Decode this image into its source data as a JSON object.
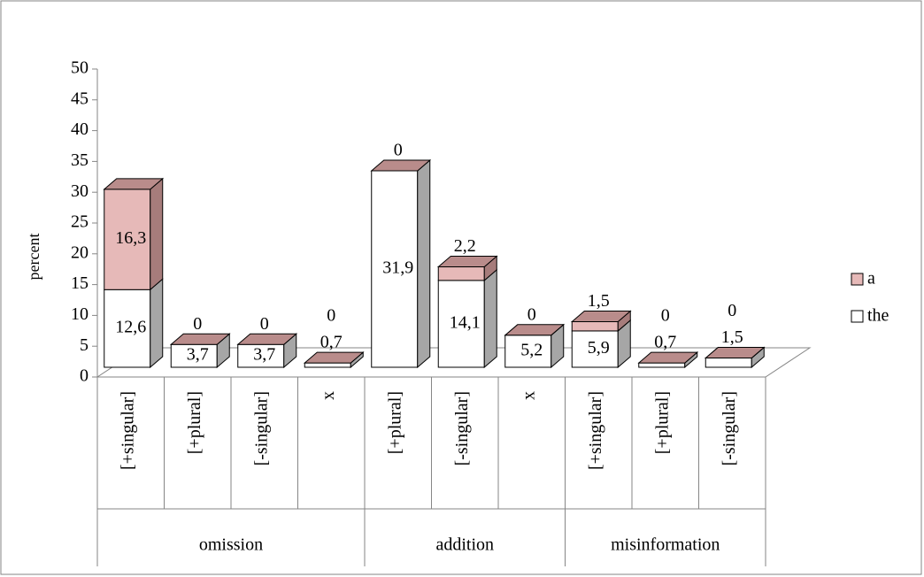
{
  "chart_data": {
    "type": "bar3d_stacked",
    "ylabel": "percent",
    "categories": [
      "[+singular]",
      "[+plural]",
      "[-singular]",
      "x",
      "[+plural]",
      "[-singular]",
      "x",
      "[+singular]",
      "[+plural]",
      "[-singular]"
    ],
    "groups": [
      {
        "label": "omission",
        "size": 4
      },
      {
        "label": "addition",
        "size": 3
      },
      {
        "label": "misinformation",
        "size": 3
      }
    ],
    "series": [
      {
        "name": "the",
        "color": "#ffffff",
        "side": "#a6a6a6",
        "top": "#c8c8c8",
        "values": [
          12.6,
          3.7,
          3.7,
          0.7,
          31.9,
          14.1,
          5.2,
          5.9,
          0.7,
          1.5
        ],
        "value_labels": [
          "12,6",
          "3,7",
          "3,7",
          "0,7",
          "31,9",
          "14,1",
          "5,2",
          "5,9",
          "0,7",
          "1,5"
        ]
      },
      {
        "name": "a",
        "color": "#e6b9b8",
        "side": "#a67c7b",
        "top": "#b98c8b",
        "values": [
          16.3,
          0,
          0,
          0,
          0,
          2.2,
          0,
          1.5,
          0,
          0
        ],
        "value_labels": [
          "16,3",
          "0",
          "0",
          "0",
          "0",
          "2,2",
          "0",
          "1,5",
          "0",
          "0"
        ]
      }
    ],
    "ylim": [
      0,
      50
    ],
    "yticks": [
      0,
      5,
      10,
      15,
      20,
      25,
      30,
      35,
      40,
      45,
      50
    ],
    "legend": "right"
  }
}
